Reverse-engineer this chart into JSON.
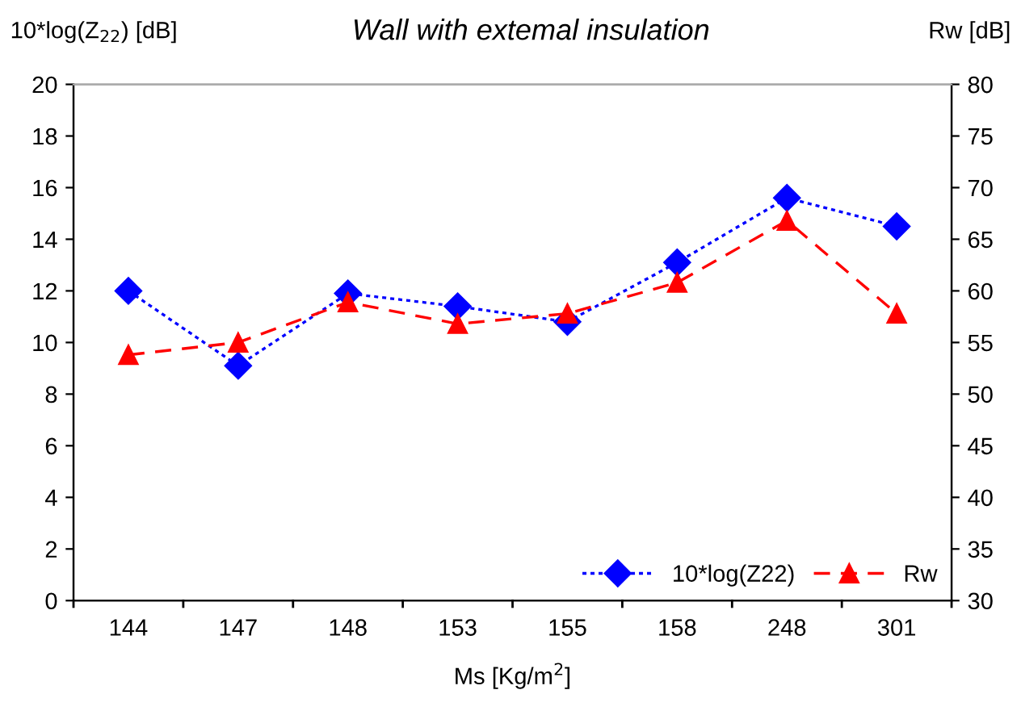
{
  "chart_data": {
    "type": "line",
    "title": "Wall with extemal insulation",
    "xlabel": "Ms [Kg/m$^{2}$]",
    "ylabel": "10*log(Z$_{22}$) [dB]",
    "y2label": "Rw [dB]",
    "categories": [
      "144",
      "147",
      "148",
      "153",
      "155",
      "158",
      "248",
      "301"
    ],
    "series": [
      {
        "name": "10*log(Z22)",
        "color": "#0000ff",
        "marker": "diamond",
        "line_style": "dotted",
        "values": [
          12.0,
          9.1,
          11.9,
          11.4,
          10.8,
          13.1,
          15.6,
          14.5
        ]
      },
      {
        "name": "Rw",
        "color": "#ff0000",
        "marker": "triangle",
        "line_style": "dashed",
        "axis": "y2",
        "values": [
          53.8,
          55.0,
          58.9,
          56.8,
          57.8,
          60.8,
          66.8,
          57.8
        ]
      }
    ],
    "ylim": [
      0,
      20
    ],
    "yticks": [
      0,
      2,
      4,
      6,
      8,
      10,
      12,
      14,
      16,
      18,
      20
    ],
    "y2lim": [
      30,
      80
    ],
    "y2ticks": [
      30,
      35,
      40,
      45,
      50,
      55,
      60,
      65,
      70,
      75,
      80
    ],
    "grid": false,
    "legend": "bottom right"
  }
}
